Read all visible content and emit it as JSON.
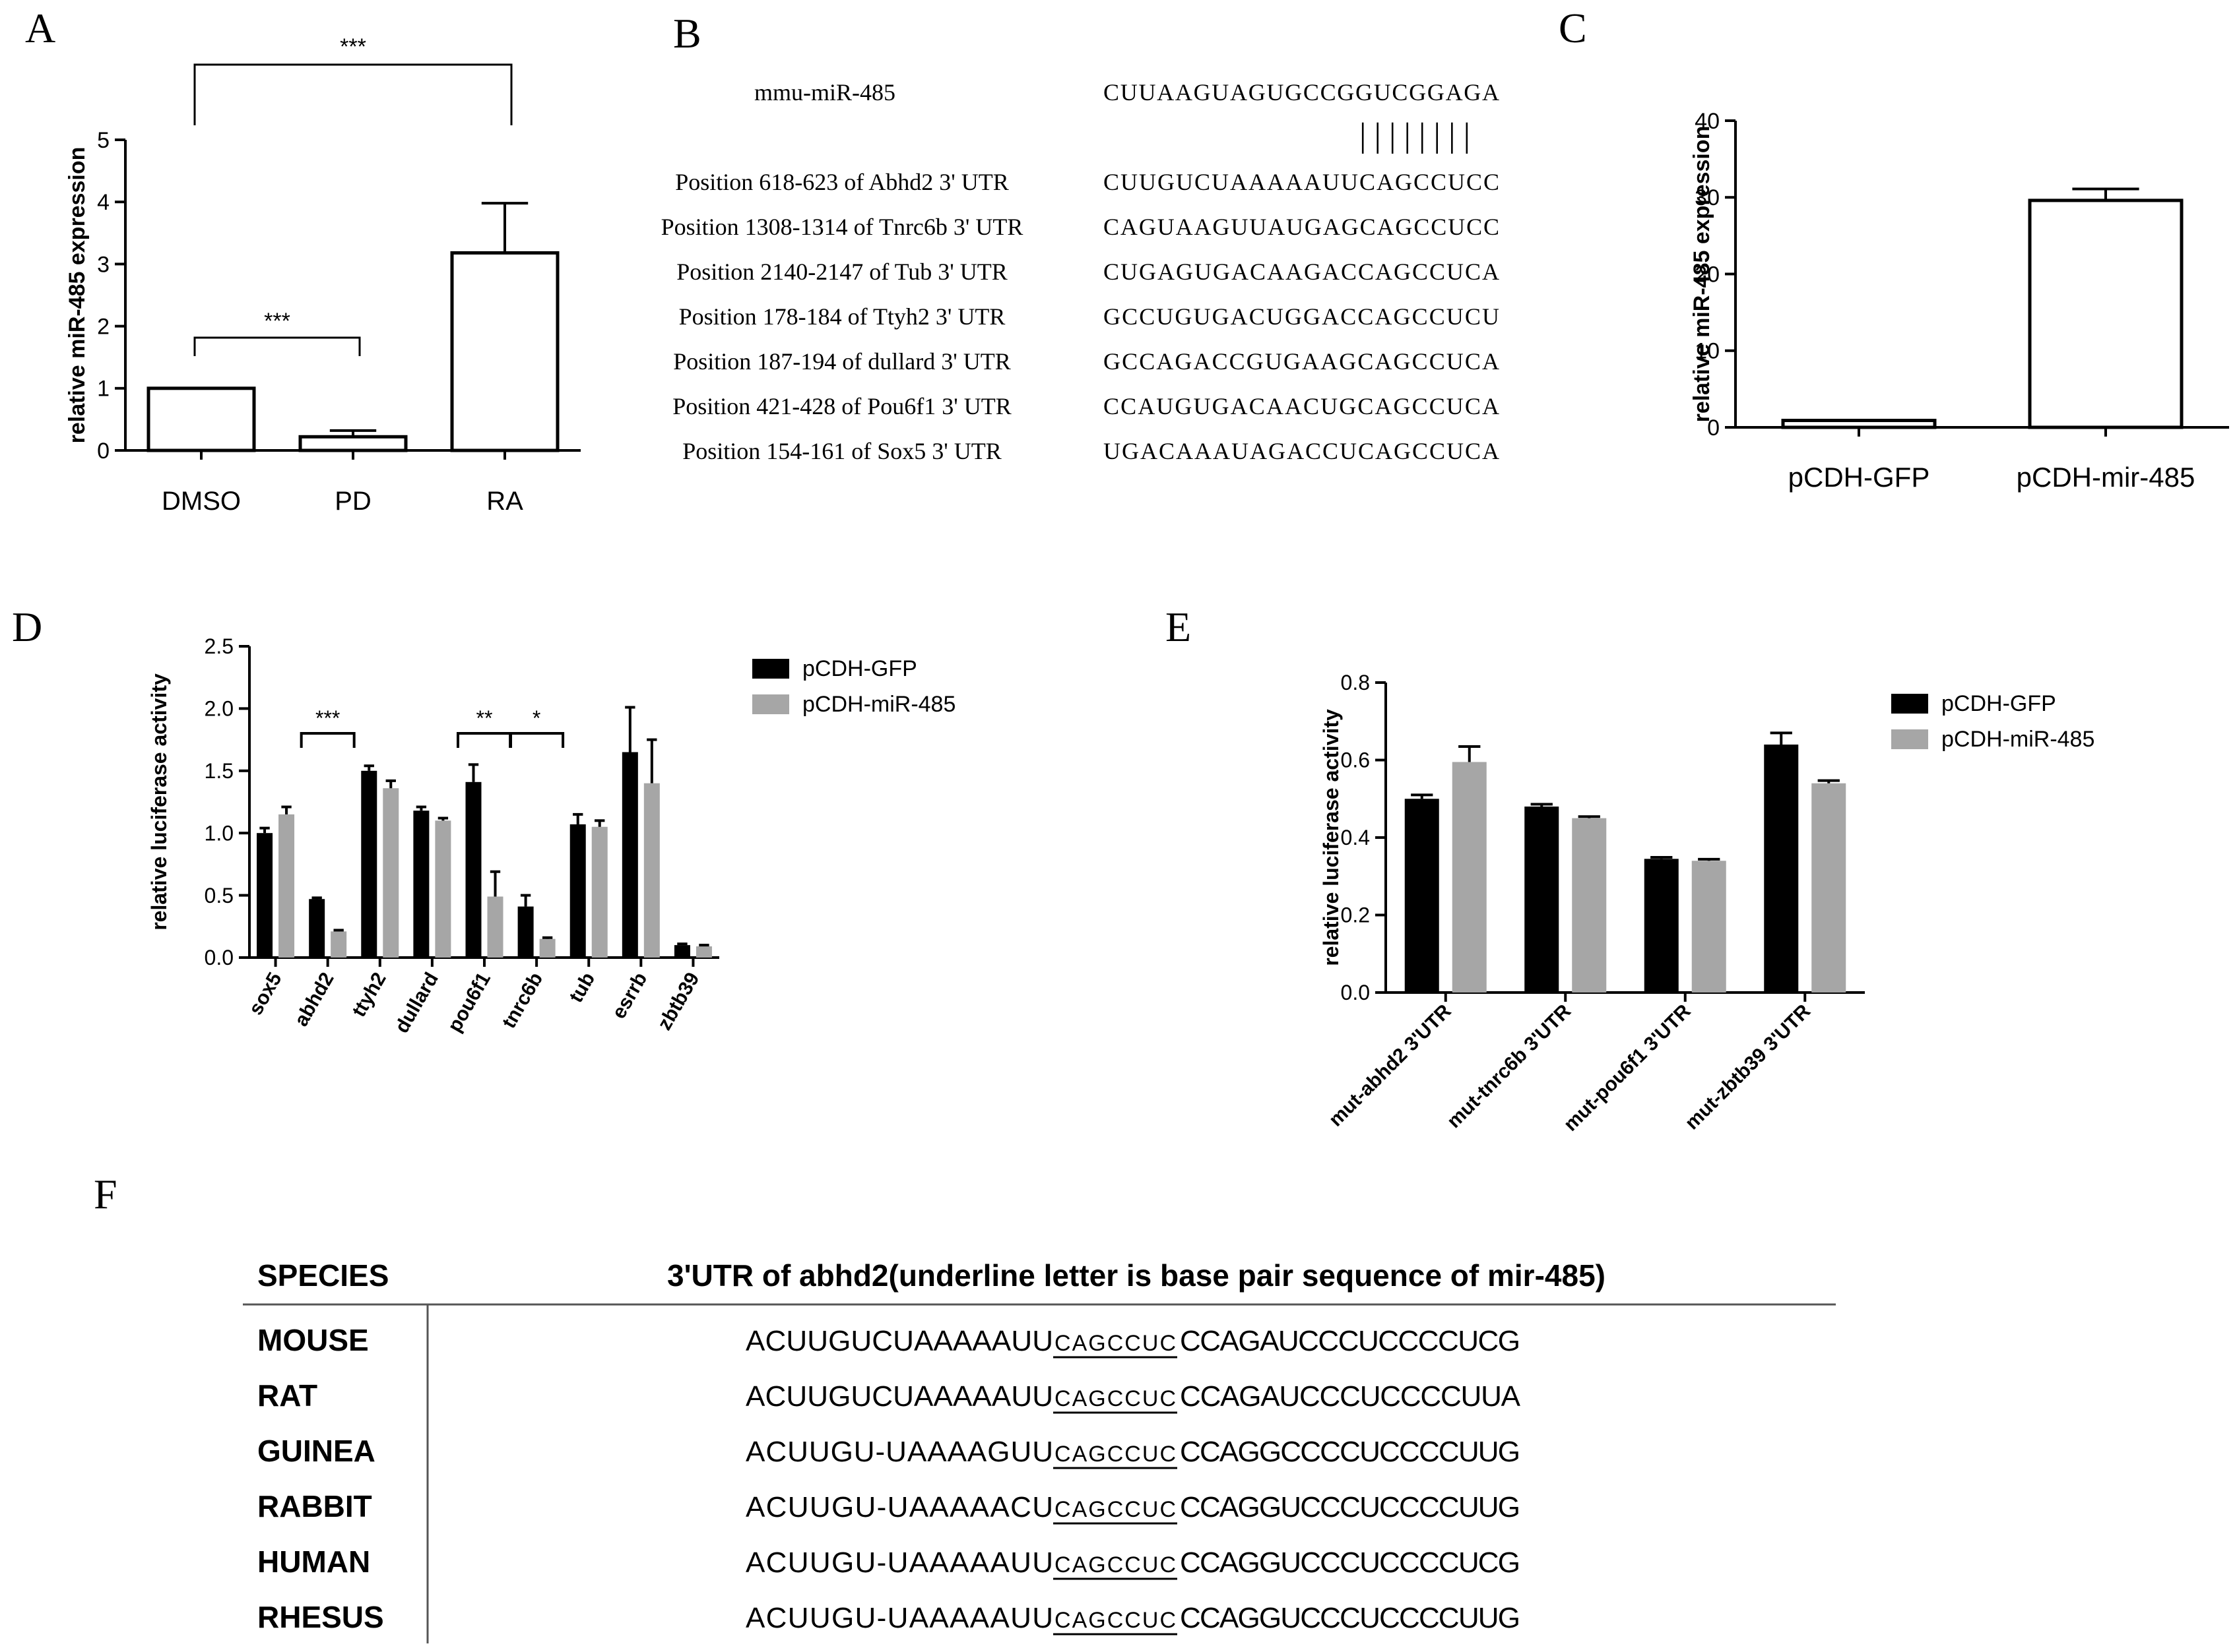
{
  "panels": {
    "A": "A",
    "B": "B",
    "C": "C",
    "D": "D",
    "E": "E",
    "F": "F"
  },
  "chart_data": [
    {
      "id": "A",
      "type": "bar",
      "categories": [
        "DMSO",
        "PD",
        "RA"
      ],
      "values": [
        1.0,
        0.22,
        3.18
      ],
      "errors": [
        0.0,
        0.1,
        0.8
      ],
      "ylabel": "relative miR-485 expression",
      "ylim": [
        0,
        5
      ],
      "yticks": [
        "0",
        "1",
        "2",
        "3",
        "4",
        "5"
      ],
      "bar_color": "#ffffff",
      "significance": [
        {
          "between": [
            "DMSO",
            "PD"
          ],
          "label": "***"
        },
        {
          "between": [
            "DMSO",
            "RA"
          ],
          "label": "***"
        }
      ]
    },
    {
      "id": "C",
      "type": "bar",
      "categories": [
        "pCDH-GFP",
        "pCDH-mir-485"
      ],
      "values": [
        0.9,
        29.6
      ],
      "errors": [
        0.0,
        1.5
      ],
      "ylabel": "relative miR-485 expression",
      "ylim": [
        0,
        40
      ],
      "yticks": [
        "0",
        "10",
        "20",
        "30",
        "40"
      ],
      "bar_color": "#ffffff"
    },
    {
      "id": "D",
      "type": "bar",
      "categories": [
        "sox5",
        "abhd2",
        "ttyh2",
        "dullard",
        "pou6f1",
        "tnrc6b",
        "tub",
        "esrrb",
        "zbtb39"
      ],
      "series": [
        {
          "name": "pCDH-GFP",
          "color": "#000000",
          "values": [
            1.0,
            0.47,
            1.5,
            1.18,
            1.41,
            0.41,
            1.07,
            1.65,
            0.1
          ],
          "errors": [
            0.04,
            0.01,
            0.04,
            0.03,
            0.14,
            0.09,
            0.08,
            0.36,
            0.01
          ]
        },
        {
          "name": "pCDH-miR-485",
          "color": "#a6a6a6",
          "values": [
            1.15,
            0.21,
            1.36,
            1.1,
            0.49,
            0.15,
            1.05,
            1.4,
            0.09
          ],
          "errors": [
            0.06,
            0.01,
            0.06,
            0.02,
            0.2,
            0.01,
            0.05,
            0.35,
            0.01
          ]
        }
      ],
      "ylabel": "relative luciferase activity",
      "ylim": [
        0,
        2.5
      ],
      "yticks": [
        "0.0",
        "0.5",
        "1.0",
        "1.5",
        "2.0",
        "2.5"
      ],
      "legend": "top-right",
      "significance": [
        {
          "category": "abhd2",
          "label": "***"
        },
        {
          "category": "pou6f1",
          "label": "**"
        },
        {
          "category": "tnrc6b",
          "label": "*"
        }
      ]
    },
    {
      "id": "E",
      "type": "bar",
      "categories": [
        "mut-abhd2 3'UTR",
        "mut-tnrc6b 3'UTR",
        "mut-pou6f1 3'UTR",
        "mut-zbtb39 3'UTR"
      ],
      "series": [
        {
          "name": "pCDH-GFP",
          "color": "#000000",
          "values": [
            0.5,
            0.48,
            0.345,
            0.64
          ],
          "errors": [
            0.01,
            0.006,
            0.004,
            0.03
          ]
        },
        {
          "name": "pCDH-miR-485",
          "color": "#a6a6a6",
          "values": [
            0.595,
            0.45,
            0.34,
            0.54
          ],
          "errors": [
            0.04,
            0.004,
            0.004,
            0.007
          ]
        }
      ],
      "ylabel": "relative luciferase activity",
      "ylim": [
        0,
        0.8
      ],
      "yticks": [
        "0.0",
        "0.2",
        "0.4",
        "0.6",
        "0.8"
      ],
      "legend": "top-right"
    }
  ],
  "panelB": {
    "mirna_label": "mmu-miR-485",
    "mirna_seq": "CUUAAGUAGUGCCGGUCGGAGA",
    "pair_marks": "||||||||",
    "rows": [
      {
        "label": "Position 618-623 of Abhd2 3' UTR",
        "seq": "CUUGUCUAAAAAUUCAGCCUCC"
      },
      {
        "label": "Position 1308-1314 of Tnrc6b 3' UTR",
        "seq": "CAGUAAGUUAUGAGCAGCCUCC"
      },
      {
        "label": "Position 2140-2147 of Tub 3' UTR",
        "seq": "CUGAGUGACAAGACCAGCCUCA"
      },
      {
        "label": "Position 178-184 of Ttyh2 3' UTR",
        "seq": "GCCUGUGACUGGACCAGCCUCU"
      },
      {
        "label": "Position 187-194 of dullard 3' UTR",
        "seq": "GCCAGACCGUGAAGCAGCCUCA"
      },
      {
        "label": "Position 421-428 of Pou6f1 3' UTR",
        "seq": "CCAUGUGACAACUGCAGCCUCA"
      },
      {
        "label": "Position 154-161 of Sox5 3' UTR",
        "seq": "UGACAAAUAGACCUCAGCCUCA"
      }
    ]
  },
  "panelF": {
    "header_species": "SPECIES",
    "header_seq": "3'UTR of abhd2(underline letter is base pair sequence of mir-485)",
    "rows": [
      {
        "species": "MOUSE",
        "pre": "ACUUGUCUAAAAAUU",
        "site": "CAGCCUC",
        "post": "CCAGAUCCCUCCCCUCG"
      },
      {
        "species": "RAT",
        "pre": "ACUUGUCUAAAAAUU",
        "site": "CAGCCUC",
        "post": "CCAGAUCCCUCCCCUUA"
      },
      {
        "species": "GUINEA",
        "pre": "ACUUGU-UAAAAGUU",
        "site": "CAGCCUC",
        "post": "CCAGGCCCCUCCCCUUG"
      },
      {
        "species": "RABBIT",
        "pre": "ACUUGU-UAAAAACU",
        "site": "CAGCCUC",
        "post": "CCAGGUCCCUCCCCUUG"
      },
      {
        "species": "HUMAN",
        "pre": "ACUUGU-UAAAAAUU",
        "site": "CAGCCUC",
        "post": "CCAGGUCCCUCCCCUCG"
      },
      {
        "species": "RHESUS",
        "pre": "ACUUGU-UAAAAAUU",
        "site": "CAGCCUC",
        "post": "CCAGGUCCCUCCCCUUG"
      }
    ]
  }
}
